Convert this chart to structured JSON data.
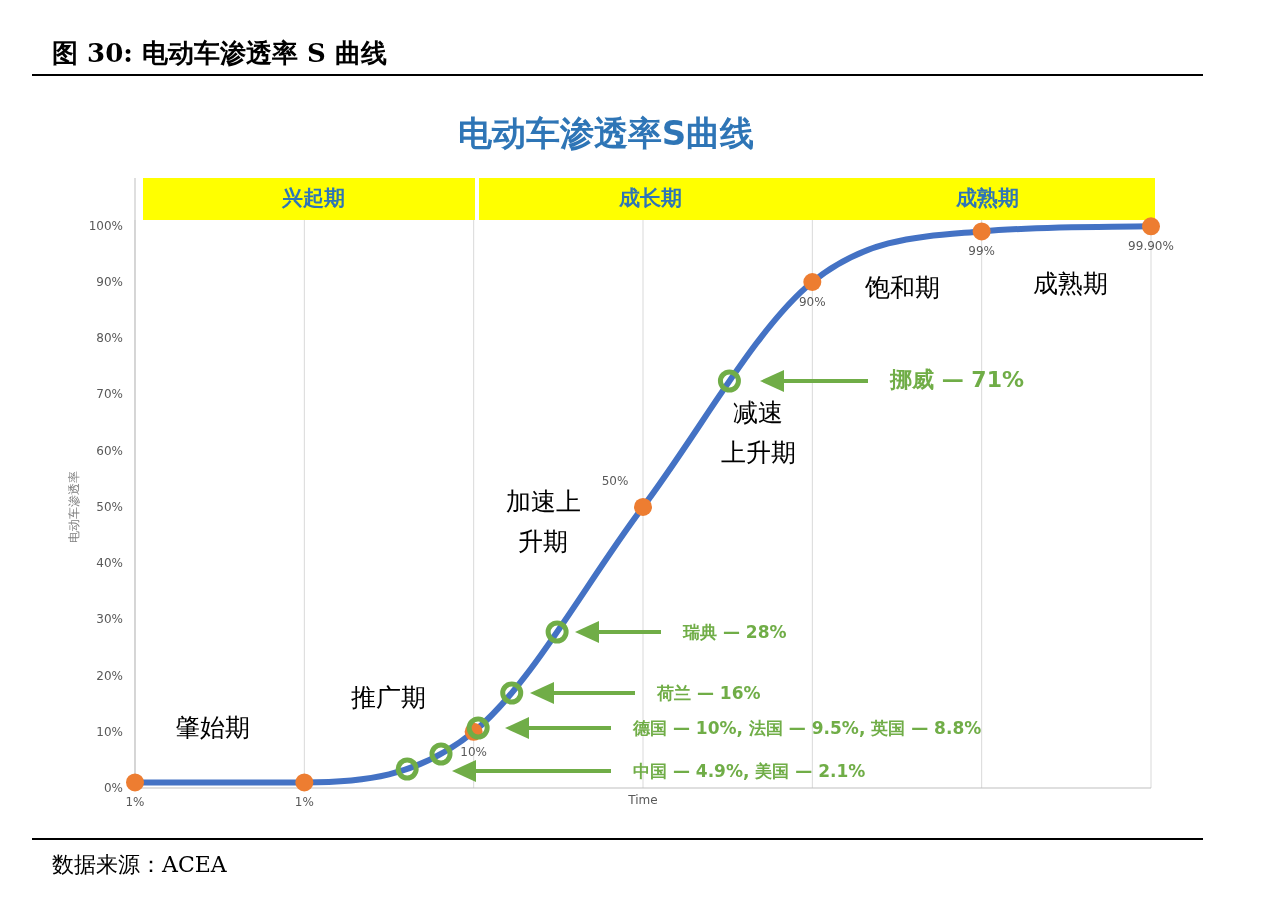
{
  "chart_data": {
    "type": "line",
    "title": "图 30: 电动车渗透率 S 曲线",
    "subtitle": "电动车渗透率S曲线",
    "xlabel": "Time",
    "ylabel": "电动车渗透率",
    "categories": [
      null,
      null,
      null,
      null,
      null,
      null,
      null
    ],
    "ylim": [
      0,
      108.5
    ],
    "yticks": [
      {
        "value": 0,
        "label": "0%"
      },
      {
        "value": 10,
        "label": "10%"
      },
      {
        "value": 20,
        "label": "20%"
      },
      {
        "value": 30,
        "label": "30%"
      },
      {
        "value": 40,
        "label": "40%"
      },
      {
        "value": 50,
        "label": "50%"
      },
      {
        "value": 60,
        "label": "60%"
      },
      {
        "value": 70,
        "label": "70%"
      },
      {
        "value": 80,
        "label": "80%"
      },
      {
        "value": 90,
        "label": "90%"
      },
      {
        "value": 100,
        "label": "100%"
      }
    ],
    "grid": "x",
    "marker": "circle",
    "series": [
      {
        "color": "#4472c4",
        "colors": [
          "#ed7d31",
          "#ed7d31",
          "#ed7d31",
          "#ed7d31",
          "#ed7d31",
          "#ed7d31",
          "#ed7d31"
        ],
        "values": [
          1,
          1,
          10,
          50,
          90,
          99,
          99.9
        ],
        "value_labels": [
          "1%",
          "1%",
          "10%",
          "50%",
          "90%",
          "99%",
          "99.90%"
        ]
      }
    ],
    "annotations": [
      "兴起期",
      "成长期",
      "成熟期",
      "肇始期",
      "推广期",
      "加速上升期",
      "减速上升期",
      "饱和期",
      "成熟期",
      "挪威 — 71%",
      "瑞典 — 28%",
      "荷兰 — 16%",
      "德国 — 10%, 法国 — 9.5%, 英国 — 8.8%",
      "中国 — 4.9%, 美国 — 2.1%",
      "数据来源：ACEA"
    ]
  }
}
